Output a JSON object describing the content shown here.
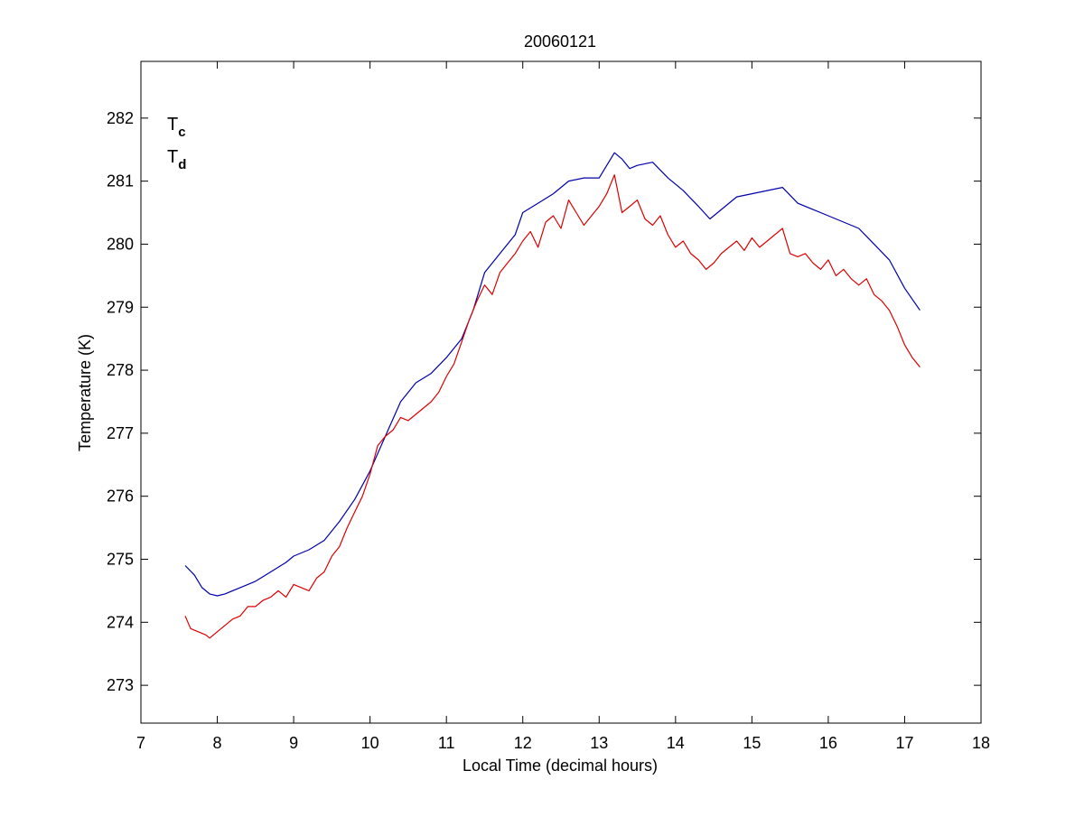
{
  "chart_data": {
    "type": "line",
    "title": "20060121",
    "xlabel": "Local Time (decimal hours)",
    "ylabel": "Temperature (K)",
    "xlim": [
      7,
      18
    ],
    "ylim": [
      272.4,
      282.9
    ],
    "xticks": [
      7,
      8,
      9,
      10,
      11,
      12,
      13,
      14,
      15,
      16,
      17,
      18
    ],
    "yticks": [
      273,
      274,
      275,
      276,
      277,
      278,
      279,
      280,
      281,
      282
    ],
    "grid": false,
    "legend_position": "top-left",
    "series": [
      {
        "name": "T_c",
        "legend_main": "T",
        "legend_sub": "c",
        "color": "#0000aa",
        "x": [
          7.58,
          7.7,
          7.8,
          7.9,
          8.0,
          8.1,
          8.3,
          8.5,
          8.7,
          8.9,
          9.0,
          9.2,
          9.4,
          9.6,
          9.8,
          10.0,
          10.2,
          10.4,
          10.6,
          10.8,
          11.0,
          11.2,
          11.35,
          11.5,
          11.7,
          11.9,
          12.0,
          12.2,
          12.4,
          12.6,
          12.8,
          13.0,
          13.1,
          13.2,
          13.3,
          13.4,
          13.5,
          13.7,
          13.9,
          14.1,
          14.3,
          14.45,
          14.6,
          14.8,
          15.0,
          15.2,
          15.4,
          15.6,
          15.8,
          16.0,
          16.2,
          16.4,
          16.6,
          16.8,
          17.0,
          17.2
        ],
        "y": [
          274.9,
          274.75,
          274.55,
          274.45,
          274.42,
          274.45,
          274.55,
          274.65,
          274.8,
          274.95,
          275.05,
          275.15,
          275.3,
          275.6,
          275.95,
          276.4,
          276.95,
          277.5,
          277.8,
          277.95,
          278.2,
          278.5,
          278.95,
          279.55,
          279.85,
          280.15,
          280.5,
          280.65,
          280.8,
          281.0,
          281.05,
          281.05,
          281.25,
          281.45,
          281.35,
          281.2,
          281.25,
          281.3,
          281.05,
          280.85,
          280.6,
          280.4,
          280.55,
          280.75,
          280.8,
          280.85,
          280.9,
          280.65,
          280.55,
          280.45,
          280.35,
          280.25,
          280.0,
          279.75,
          279.3,
          278.95
        ]
      },
      {
        "name": "T_d",
        "legend_main": "T",
        "legend_sub": "d",
        "color": "#dd0000",
        "x": [
          7.58,
          7.65,
          7.75,
          7.85,
          7.9,
          8.0,
          8.1,
          8.2,
          8.3,
          8.4,
          8.5,
          8.6,
          8.7,
          8.8,
          8.9,
          9.0,
          9.1,
          9.2,
          9.3,
          9.4,
          9.5,
          9.6,
          9.7,
          9.8,
          9.9,
          10.0,
          10.1,
          10.2,
          10.3,
          10.4,
          10.5,
          10.6,
          10.7,
          10.8,
          10.9,
          11.0,
          11.1,
          11.2,
          11.3,
          11.4,
          11.5,
          11.6,
          11.7,
          11.8,
          11.9,
          12.0,
          12.1,
          12.2,
          12.3,
          12.4,
          12.5,
          12.6,
          12.7,
          12.8,
          12.9,
          13.0,
          13.1,
          13.2,
          13.3,
          13.4,
          13.5,
          13.6,
          13.7,
          13.8,
          13.9,
          14.0,
          14.1,
          14.2,
          14.3,
          14.4,
          14.5,
          14.6,
          14.7,
          14.8,
          14.9,
          15.0,
          15.1,
          15.2,
          15.3,
          15.4,
          15.5,
          15.6,
          15.7,
          15.8,
          15.9,
          16.0,
          16.1,
          16.2,
          16.3,
          16.4,
          16.5,
          16.6,
          16.7,
          16.8,
          16.9,
          17.0,
          17.1,
          17.2
        ],
        "y": [
          274.1,
          273.9,
          273.85,
          273.8,
          273.75,
          273.85,
          273.95,
          274.05,
          274.1,
          274.25,
          274.25,
          274.35,
          274.4,
          274.5,
          274.4,
          274.6,
          274.55,
          274.5,
          274.7,
          274.8,
          275.05,
          275.2,
          275.5,
          275.75,
          276.0,
          276.35,
          276.8,
          276.95,
          277.05,
          277.25,
          277.2,
          277.3,
          277.4,
          277.5,
          277.65,
          277.9,
          278.1,
          278.45,
          278.8,
          279.1,
          279.35,
          279.2,
          279.55,
          279.7,
          279.85,
          280.05,
          280.2,
          279.95,
          280.35,
          280.45,
          280.25,
          280.7,
          280.5,
          280.3,
          280.45,
          280.6,
          280.8,
          281.1,
          280.5,
          280.6,
          280.7,
          280.4,
          280.3,
          280.45,
          280.15,
          279.95,
          280.05,
          279.85,
          279.75,
          279.6,
          279.7,
          279.85,
          279.95,
          280.05,
          279.9,
          280.1,
          279.95,
          280.05,
          280.15,
          280.25,
          279.85,
          279.8,
          279.85,
          279.7,
          279.6,
          279.75,
          279.5,
          279.6,
          279.45,
          279.35,
          279.45,
          279.2,
          279.1,
          278.95,
          278.7,
          278.4,
          278.2,
          278.05
        ]
      }
    ]
  }
}
